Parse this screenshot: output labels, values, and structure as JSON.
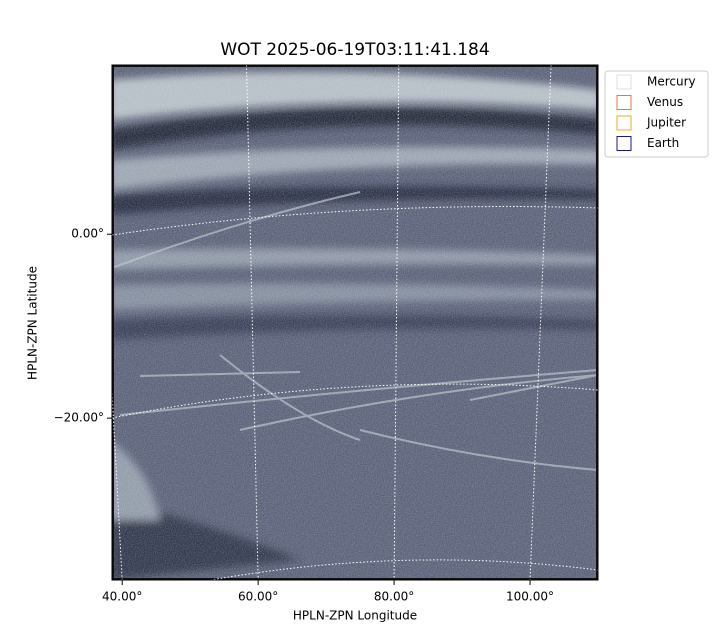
{
  "chart_data": {
    "type": "image",
    "title": "WOT 2025-06-19T03:11:41.184",
    "x_label": "HPLN-ZPN Longitude",
    "y_label": "HPLN-ZPN Latitude",
    "xlim": [
      38.5,
      110
    ],
    "ylim": [
      -37.6,
      18.4
    ],
    "xticks": [
      {
        "value": 40,
        "label": "40.00°"
      },
      {
        "value": 60,
        "label": "60.00°"
      },
      {
        "value": 80,
        "label": "80.00°"
      },
      {
        "value": 100,
        "label": "100.00°"
      }
    ],
    "yticks": [
      {
        "value": 0,
        "label": "0.00°"
      },
      {
        "value": -20,
        "label": "−20.00°"
      }
    ],
    "grid": true,
    "legend_position": "outside-upper-right",
    "series": [
      {
        "name": "Mercury",
        "color": "#dcdcdc"
      },
      {
        "name": "Venus",
        "color": "#e07b39"
      },
      {
        "name": "Jupiter",
        "color": "#e0b020"
      },
      {
        "name": "Earth",
        "color": "#1a1a80"
      }
    ]
  }
}
